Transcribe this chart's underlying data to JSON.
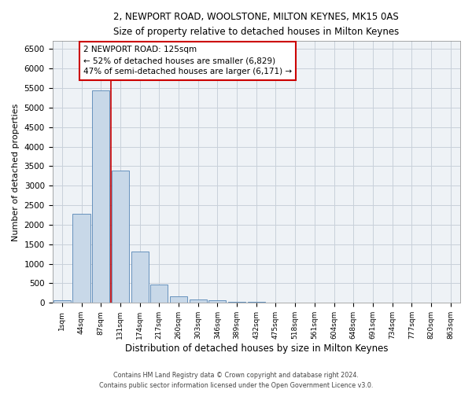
{
  "title1": "2, NEWPORT ROAD, WOOLSTONE, MILTON KEYNES, MK15 0AS",
  "title2": "Size of property relative to detached houses in Milton Keynes",
  "xlabel": "Distribution of detached houses by size in Milton Keynes",
  "ylabel": "Number of detached properties",
  "footer1": "Contains HM Land Registry data © Crown copyright and database right 2024.",
  "footer2": "Contains public sector information licensed under the Open Government Licence v3.0.",
  "bar_labels": [
    "1sqm",
    "44sqm",
    "87sqm",
    "131sqm",
    "174sqm",
    "217sqm",
    "260sqm",
    "303sqm",
    "346sqm",
    "389sqm",
    "432sqm",
    "475sqm",
    "518sqm",
    "561sqm",
    "604sqm",
    "648sqm",
    "691sqm",
    "734sqm",
    "777sqm",
    "820sqm",
    "863sqm"
  ],
  "bar_values": [
    75,
    2280,
    5430,
    3380,
    1310,
    475,
    165,
    90,
    65,
    35,
    20,
    10,
    5,
    3,
    2,
    1,
    1,
    1,
    0,
    0,
    0
  ],
  "bar_color": "#c8d8e8",
  "bar_edge_color": "#5585b5",
  "vline_x": 2.5,
  "vline_color": "#cc0000",
  "annotation_line1": "2 NEWPORT ROAD: 125sqm",
  "annotation_line2": "← 52% of detached houses are smaller (6,829)",
  "annotation_line3": "47% of semi-detached houses are larger (6,171) →",
  "annotation_box_color": "#cc0000",
  "bg_color": "#eef2f6",
  "grid_color": "#c8d0da",
  "ylim": [
    0,
    6700
  ],
  "yticks": [
    0,
    500,
    1000,
    1500,
    2000,
    2500,
    3000,
    3500,
    4000,
    4500,
    5000,
    5500,
    6000,
    6500
  ]
}
